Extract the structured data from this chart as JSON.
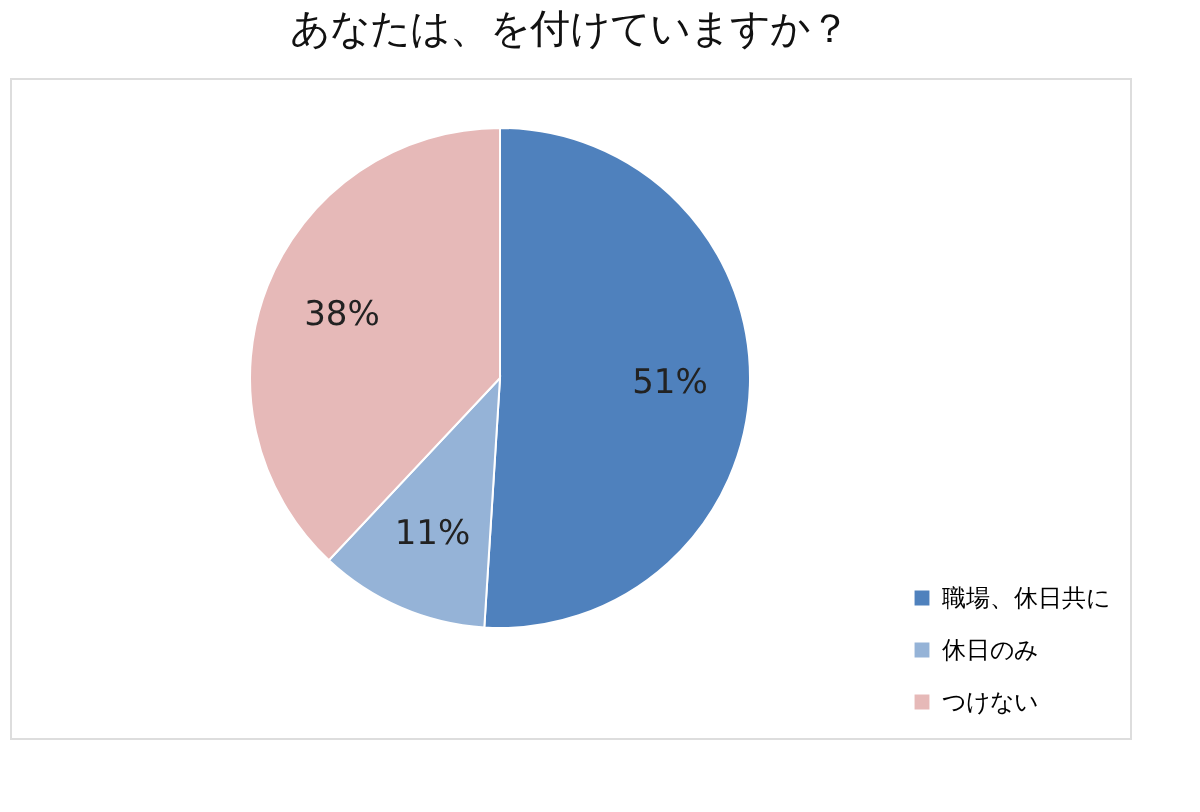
{
  "chart_data": {
    "type": "pie",
    "title": "あなたは、を付けていますか？",
    "categories": [
      "職場、休日共に",
      "休日のみ",
      "つけない"
    ],
    "values": [
      51,
      11,
      38
    ],
    "colors": [
      "#4f81bd",
      "#95b3d7",
      "#e6b9b8"
    ],
    "value_labels": [
      "51%",
      "11%",
      "38%"
    ],
    "legend": "bottom right"
  }
}
